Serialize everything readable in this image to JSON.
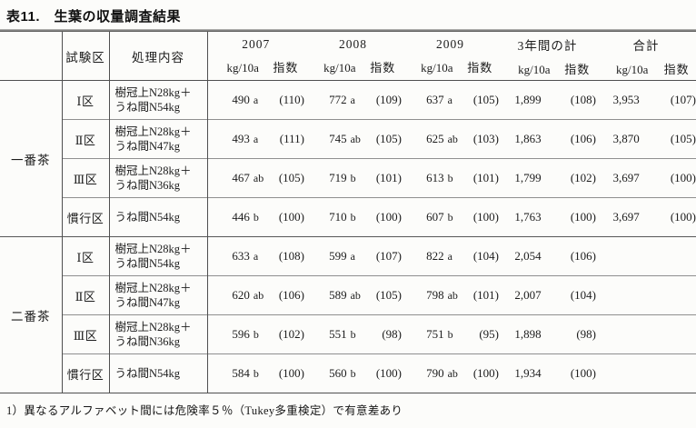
{
  "page": {
    "title": "表11.　生葉の収量調査結果",
    "footnote": "1）異なるアルファベット間には危険率５％（Tukey多重検定）で有意差あり"
  },
  "colors": {
    "background": "#fcfcfa",
    "text": "#1c1c1c",
    "rule_dark": "#4f4f4f",
    "rule_light": "#8f8f8f"
  },
  "table": {
    "header": {
      "plot": "試験区",
      "treatment": "処理内容",
      "year_groups": [
        {
          "label": "2007",
          "unit_value": "kg/10a",
          "unit_index": "指数"
        },
        {
          "label": "2008",
          "unit_value": "kg/10a",
          "unit_index": "指数"
        },
        {
          "label": "2009",
          "unit_value": "kg/10a",
          "unit_index": "指数"
        },
        {
          "label": "3年間の計",
          "unit_value": "kg/10a",
          "unit_index": "指数"
        },
        {
          "label": "合計",
          "unit_value": "kg/10a",
          "unit_index": "指数"
        }
      ]
    },
    "groups": [
      {
        "name": "一番茶",
        "rows": [
          {
            "plot": "Ⅰ区",
            "treatment": "樹冠上N28kg＋\nうね間N54kg",
            "cells": [
              {
                "v": "490",
                "l": "a",
                "i": "(110)"
              },
              {
                "v": "772",
                "l": "a",
                "i": "(109)"
              },
              {
                "v": "637",
                "l": "a",
                "i": "(105)"
              },
              {
                "v": "1,899",
                "l": "",
                "i": "(108)"
              },
              {
                "v": "3,953",
                "l": "",
                "i": "(107)"
              }
            ]
          },
          {
            "plot": "Ⅱ区",
            "treatment": "樹冠上N28kg＋\nうね間N47kg",
            "cells": [
              {
                "v": "493",
                "l": "a",
                "i": "(111)"
              },
              {
                "v": "745",
                "l": "ab",
                "i": "(105)"
              },
              {
                "v": "625",
                "l": "ab",
                "i": "(103)"
              },
              {
                "v": "1,863",
                "l": "",
                "i": "(106)"
              },
              {
                "v": "3,870",
                "l": "",
                "i": "(105)"
              }
            ]
          },
          {
            "plot": "Ⅲ区",
            "treatment": "樹冠上N28kg＋\nうね間N36kg",
            "cells": [
              {
                "v": "467",
                "l": "ab",
                "i": "(105)"
              },
              {
                "v": "719",
                "l": "b",
                "i": "(101)"
              },
              {
                "v": "613",
                "l": "b",
                "i": "(101)"
              },
              {
                "v": "1,799",
                "l": "",
                "i": "(102)"
              },
              {
                "v": "3,697",
                "l": "",
                "i": "(100)"
              }
            ]
          },
          {
            "plot": "慣行区",
            "treatment": "うね間N54kg",
            "cells": [
              {
                "v": "446",
                "l": "b",
                "i": "(100)"
              },
              {
                "v": "710",
                "l": "b",
                "i": "(100)"
              },
              {
                "v": "607",
                "l": "b",
                "i": "(100)"
              },
              {
                "v": "1,763",
                "l": "",
                "i": "(100)"
              },
              {
                "v": "3,697",
                "l": "",
                "i": "(100)"
              }
            ]
          }
        ]
      },
      {
        "name": "二番茶",
        "rows": [
          {
            "plot": "Ⅰ区",
            "treatment": "樹冠上N28kg＋\nうね間N54kg",
            "cells": [
              {
                "v": "633",
                "l": "a",
                "i": "(108)"
              },
              {
                "v": "599",
                "l": "a",
                "i": "(107)"
              },
              {
                "v": "822",
                "l": "a",
                "i": "(104)"
              },
              {
                "v": "2,054",
                "l": "",
                "i": "(106)"
              },
              {
                "v": "",
                "l": "",
                "i": ""
              }
            ]
          },
          {
            "plot": "Ⅱ区",
            "treatment": "樹冠上N28kg＋\nうね間N47kg",
            "cells": [
              {
                "v": "620",
                "l": "ab",
                "i": "(106)"
              },
              {
                "v": "589",
                "l": "ab",
                "i": "(105)"
              },
              {
                "v": "798",
                "l": "ab",
                "i": "(101)"
              },
              {
                "v": "2,007",
                "l": "",
                "i": "(104)"
              },
              {
                "v": "",
                "l": "",
                "i": ""
              }
            ]
          },
          {
            "plot": "Ⅲ区",
            "treatment": "樹冠上N28kg＋\nうね間N36kg",
            "cells": [
              {
                "v": "596",
                "l": "b",
                "i": "(102)"
              },
              {
                "v": "551",
                "l": "b",
                "i": "(98)"
              },
              {
                "v": "751",
                "l": "b",
                "i": "(95)"
              },
              {
                "v": "1,898",
                "l": "",
                "i": "(98)"
              },
              {
                "v": "",
                "l": "",
                "i": ""
              }
            ]
          },
          {
            "plot": "慣行区",
            "treatment": "うね間N54kg",
            "cells": [
              {
                "v": "584",
                "l": "b",
                "i": "(100)"
              },
              {
                "v": "560",
                "l": "b",
                "i": "(100)"
              },
              {
                "v": "790",
                "l": "ab",
                "i": "(100)"
              },
              {
                "v": "1,934",
                "l": "",
                "i": "(100)"
              },
              {
                "v": "",
                "l": "",
                "i": ""
              }
            ]
          }
        ]
      }
    ]
  }
}
